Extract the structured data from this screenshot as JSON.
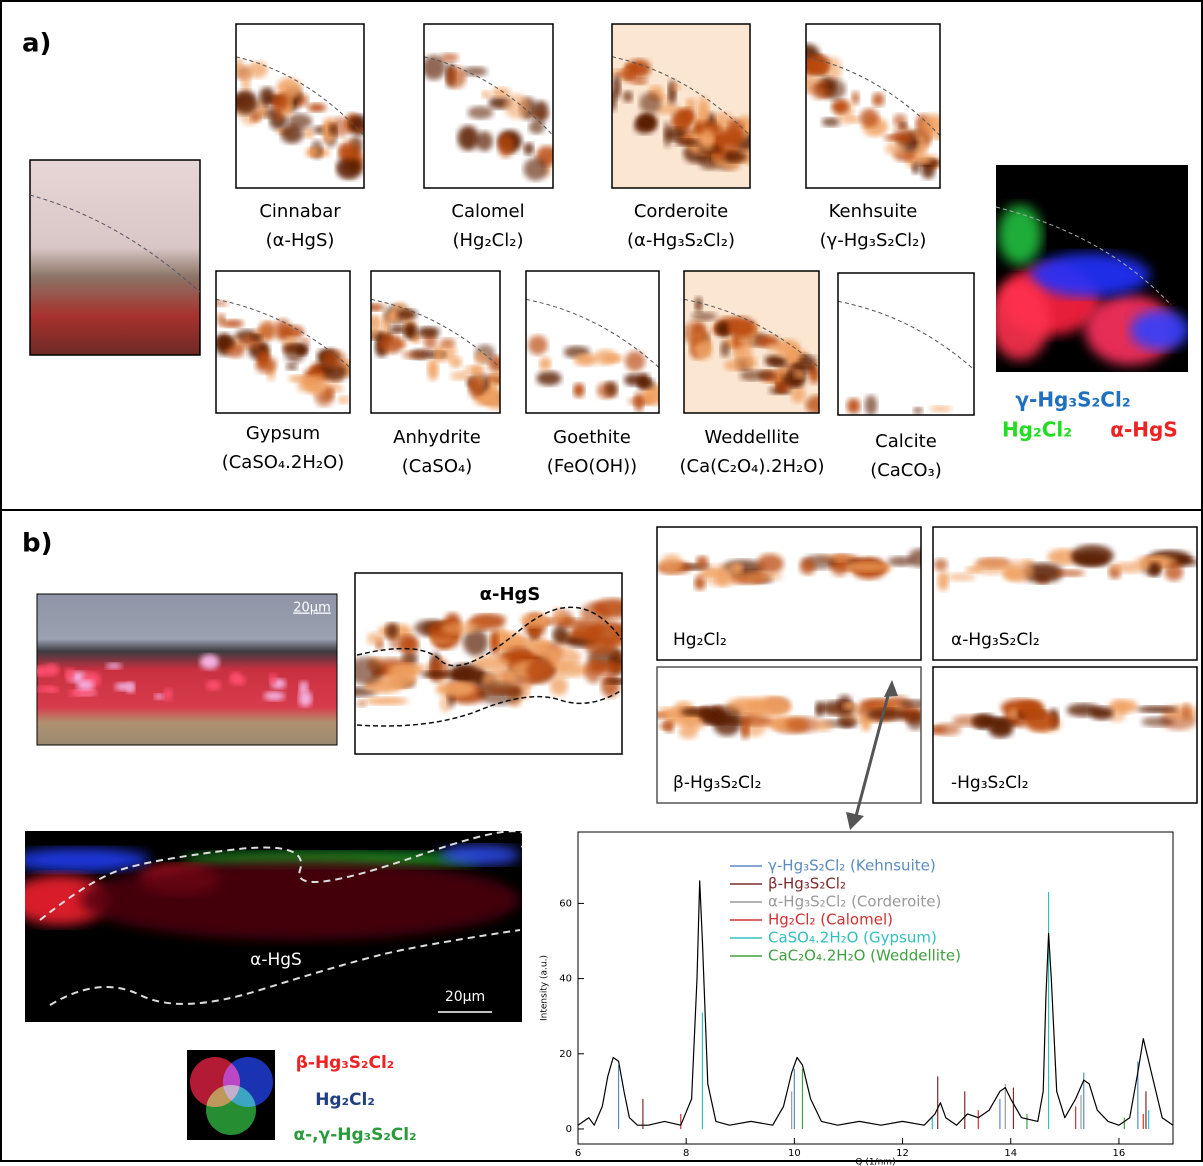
{
  "panel_a": {
    "label": "a)",
    "maps": [
      {
        "name": "Cinnabar",
        "formula": "(α-HgS)"
      },
      {
        "name": "Calomel",
        "formula": "(Hg₂Cl₂)"
      },
      {
        "name": "Corderoite",
        "formula": "(α-Hg₃S₂Cl₂)"
      },
      {
        "name": "Kenhsuite",
        "formula": "(γ-Hg₃S₂Cl₂)"
      },
      {
        "name": "Gypsum",
        "formula": "(CaSO₄.2H₂O)"
      },
      {
        "name": "Anhydrite",
        "formula": "(CaSO₄)"
      },
      {
        "name": "Goethite",
        "formula": "(FeO(OH))"
      },
      {
        "name": "Weddellite",
        "formula": "(Ca(C₂O₄).2H₂O)"
      },
      {
        "name": "Calcite",
        "formula": "(CaCO₃)"
      }
    ],
    "composite_legend": [
      "γ-Hg₃S₂Cl₂",
      "Hg₂Cl₂",
      "α-HgS"
    ]
  },
  "panel_b": {
    "label": "b)",
    "photo_scale": "20µm",
    "main_map": "α-HgS",
    "maps": [
      "Hg₂Cl₂",
      "α-Hg₃S₂Cl₂",
      "β-Hg₃S₂Cl₂",
      "-Hg₃S₂Cl₂"
    ],
    "composite_label": "α-HgS",
    "composite_scale": "20µm",
    "venn_legend": [
      "β-Hg₃S₂Cl₂",
      "Hg₂Cl₂",
      "α-,γ-Hg₃S₂Cl₂"
    ]
  },
  "chart_data": {
    "type": "line",
    "x_label": "Q (1/nm)",
    "y_label": "Intensity (a.u.)",
    "xlim": [
      6,
      17
    ],
    "ylim": [
      -4,
      79
    ],
    "xticks": [
      6,
      8,
      10,
      12,
      14,
      16
    ],
    "yticks": [
      0,
      20,
      40,
      60
    ],
    "profile": {
      "color": "#000000",
      "x": [
        6.0,
        6.2,
        6.3,
        6.45,
        6.55,
        6.65,
        6.75,
        6.85,
        6.95,
        7.1,
        7.3,
        7.6,
        7.9,
        8.1,
        8.2,
        8.25,
        8.3,
        8.4,
        8.55,
        8.8,
        9.2,
        9.6,
        9.8,
        9.95,
        10.05,
        10.15,
        10.3,
        10.5,
        10.8,
        11.2,
        11.6,
        12.0,
        12.4,
        12.6,
        12.7,
        12.8,
        13.0,
        13.2,
        13.4,
        13.6,
        13.8,
        13.9,
        14.0,
        14.2,
        14.5,
        14.6,
        14.65,
        14.7,
        14.75,
        14.85,
        15.0,
        15.2,
        15.35,
        15.45,
        15.6,
        15.8,
        16.0,
        16.2,
        16.35,
        16.45,
        16.6,
        16.8,
        17.0
      ],
      "values": [
        1,
        3,
        1,
        6,
        14,
        19,
        18,
        10,
        3,
        1,
        1,
        2,
        1,
        8,
        40,
        66,
        50,
        12,
        2,
        1,
        2,
        1,
        6,
        15,
        19,
        17,
        8,
        2,
        1,
        2,
        1,
        2,
        1,
        4,
        7,
        3,
        1,
        4,
        3,
        5,
        10,
        11,
        8,
        3,
        2,
        10,
        35,
        52,
        40,
        10,
        3,
        8,
        13,
        12,
        5,
        2,
        1,
        3,
        15,
        24,
        15,
        3,
        1
      ]
    },
    "series": [
      {
        "name": "γ-Hg₃S₂Cl₂ (Kehnsuite)",
        "color": "#5b8bc0",
        "x": [
          6.75,
          10.0,
          13.8,
          15.35,
          16.35
        ],
        "values": [
          17,
          16,
          8,
          15,
          18
        ]
      },
      {
        "name": "β-Hg₃S₂Cl₂",
        "color": "#7b2b2b",
        "x": [
          7.2,
          12.65,
          13.15,
          14.05,
          16.5
        ],
        "values": [
          8,
          14,
          10,
          11,
          10
        ]
      },
      {
        "name": "α-Hg₃S₂Cl₂ (Corderoite)",
        "color": "#9a9a9a",
        "x": [
          9.95,
          13.9,
          15.3
        ],
        "values": [
          10,
          12,
          9
        ]
      },
      {
        "name": "Hg₂Cl₂ (Calomel)",
        "color": "#d03030",
        "x": [
          7.9,
          13.4,
          15.2,
          16.45
        ],
        "values": [
          4,
          5,
          6,
          4
        ]
      },
      {
        "name": "CaSO₄.2H₂O (Gypsum)",
        "color": "#30c0c0",
        "x": [
          8.3,
          12.55,
          14.7,
          16.55
        ],
        "values": [
          31,
          3,
          63,
          5
        ]
      },
      {
        "name": "CaC₂O₄.2H₂O (Weddellite)",
        "color": "#40a040",
        "x": [
          10.15,
          14.3,
          16.1
        ],
        "values": [
          16,
          4,
          3
        ]
      }
    ]
  }
}
